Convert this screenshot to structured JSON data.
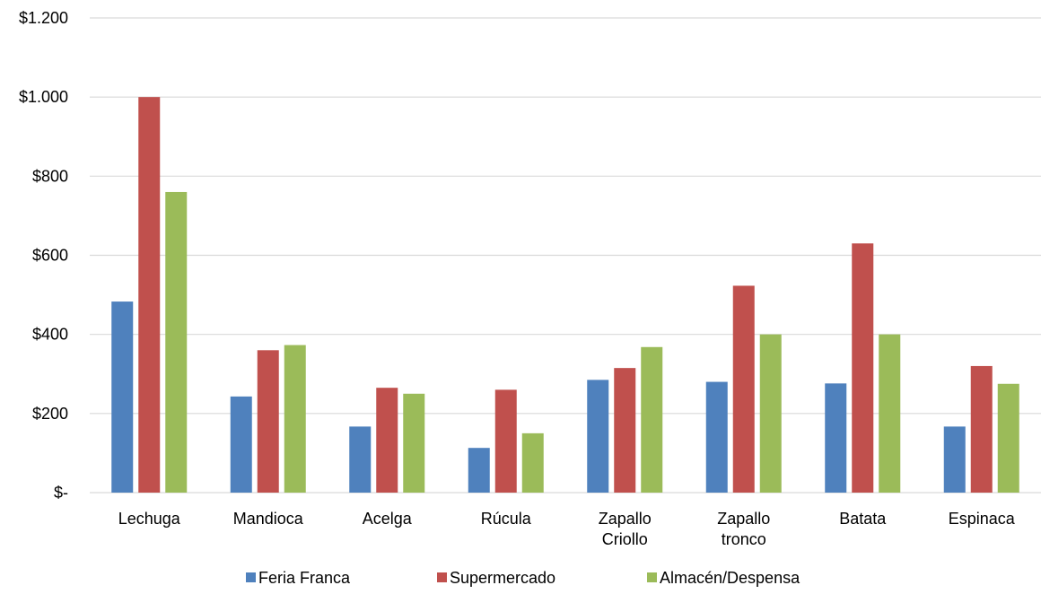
{
  "chart_data": {
    "type": "bar",
    "categories": [
      [
        "Lechuga"
      ],
      [
        "Mandioca"
      ],
      [
        "Acelga"
      ],
      [
        "Rúcula"
      ],
      [
        "Zapallo",
        "Criollo"
      ],
      [
        "Zapallo",
        "tronco"
      ],
      [
        "Batata"
      ],
      [
        "Espinaca"
      ]
    ],
    "series": [
      {
        "name": "Feria Franca",
        "color": "#4f81bd",
        "values": [
          483,
          243,
          167,
          113,
          285,
          280,
          276,
          167
        ]
      },
      {
        "name": "Supermercado",
        "color": "#c0504d",
        "values": [
          1000,
          360,
          265,
          260,
          315,
          523,
          630,
          320
        ]
      },
      {
        "name": "Almacén/Despensa",
        "color": "#9bbb59",
        "values": [
          760,
          373,
          250,
          150,
          368,
          400,
          400,
          275
        ]
      }
    ],
    "ylim": [
      0,
      1200
    ],
    "y_ticks": [
      {
        "value": 0,
        "label": "$-"
      },
      {
        "value": 200,
        "label": "$200"
      },
      {
        "value": 400,
        "label": "$400"
      },
      {
        "value": 600,
        "label": "$600"
      },
      {
        "value": 800,
        "label": "$800"
      },
      {
        "value": 1000,
        "label": "$1.000"
      },
      {
        "value": 1200,
        "label": "$1.200"
      }
    ],
    "grid": true,
    "legend_position": "bottom"
  }
}
